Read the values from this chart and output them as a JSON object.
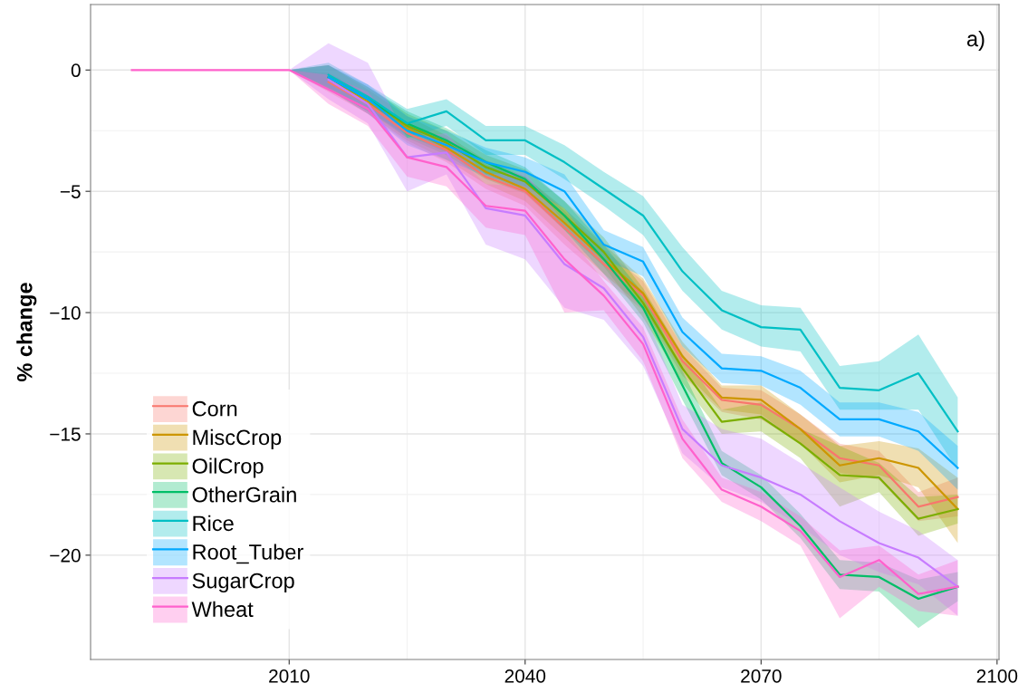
{
  "chart_data": {
    "type": "line",
    "ylabel": "% change",
    "annotations": [
      "a)"
    ],
    "x": [
      1990,
      2010,
      2015,
      2020,
      2025,
      2030,
      2035,
      2040,
      2045,
      2050,
      2055,
      2060,
      2065,
      2070,
      2075,
      2080,
      2085,
      2090,
      2095
    ],
    "xlim": [
      1984.75,
      2100.25
    ],
    "xticks": [
      2010,
      2040,
      2070,
      2100
    ],
    "ylim": [
      -24.3,
      2.7
    ],
    "yticks": [
      0,
      {
        "value": -5,
        "label": "−5"
      },
      {
        "value": -10,
        "label": "−10"
      },
      {
        "value": -15,
        "label": "−15"
      },
      {
        "value": -20,
        "label": "−20"
      }
    ],
    "grid": true,
    "legend": "bottom left",
    "line_style": "solid",
    "marker": "none",
    "series": [
      {
        "name": "Corn",
        "color": "#f8766d",
        "values": [
          null,
          null,
          -0.5,
          -1.4,
          -2.6,
          -3.3,
          -4.4,
          -5.0,
          -6.5,
          -8.0,
          -9.3,
          -12.0,
          -13.6,
          -13.8,
          -14.8,
          -16.0,
          -16.3,
          -18.0,
          -17.6
        ],
        "lower": [
          0,
          0,
          -0.9,
          -1.8,
          -3.0,
          -3.8,
          -4.9,
          -5.6,
          -7.2,
          -8.6,
          -9.9,
          -12.6,
          -14.1,
          -14.4,
          -15.4,
          -16.6,
          -16.9,
          -18.6,
          -18.4
        ],
        "upper": [
          0,
          0,
          -0.1,
          -1.0,
          -2.2,
          -2.8,
          -3.9,
          -4.4,
          -5.8,
          -7.4,
          -8.7,
          -11.4,
          -13.1,
          -13.2,
          -14.2,
          -15.4,
          -15.7,
          -17.4,
          -16.8
        ]
      },
      {
        "name": "MiscCrop",
        "color": "#cd9600",
        "values": [
          null,
          null,
          -0.3,
          -1.3,
          -2.4,
          -3.2,
          -4.2,
          -4.9,
          -6.3,
          -7.8,
          -9.2,
          -11.8,
          -13.5,
          -13.6,
          -14.8,
          -16.3,
          -16.0,
          -16.4,
          -18.1
        ],
        "lower": [
          0,
          0,
          -0.8,
          -1.8,
          -2.9,
          -3.7,
          -4.7,
          -5.4,
          -6.9,
          -8.4,
          -9.8,
          -12.4,
          -14.0,
          -14.2,
          -15.4,
          -17.0,
          -16.7,
          -17.2,
          -19.5
        ],
        "upper": [
          0,
          0,
          0.2,
          -0.8,
          -1.9,
          -2.7,
          -3.7,
          -4.4,
          -5.7,
          -7.2,
          -8.6,
          -11.2,
          -13.0,
          -13.0,
          -14.2,
          -15.5,
          -15.3,
          -15.6,
          -16.8
        ]
      },
      {
        "name": "OilCrop",
        "color": "#7cae00",
        "values": [
          null,
          null,
          -0.3,
          -1.2,
          -2.3,
          -3.0,
          -4.0,
          -4.6,
          -6.0,
          -7.5,
          -9.6,
          -12.3,
          -14.5,
          -14.3,
          -15.4,
          -16.7,
          -16.8,
          -18.5,
          -18.1
        ],
        "lower": [
          0,
          0,
          -0.8,
          -1.7,
          -2.8,
          -3.5,
          -4.5,
          -5.1,
          -6.6,
          -8.1,
          -10.2,
          -12.9,
          -15.0,
          -14.9,
          -16.0,
          -18.0,
          -17.4,
          -19.2,
          -18.7
        ],
        "upper": [
          0,
          0,
          0.2,
          -0.7,
          -1.8,
          -2.5,
          -3.5,
          -4.1,
          -5.4,
          -6.9,
          -9.0,
          -11.7,
          -14.0,
          -13.7,
          -14.8,
          -15.5,
          -16.2,
          -17.6,
          -17.5
        ]
      },
      {
        "name": "OtherGrain",
        "color": "#00be67",
        "values": [
          null,
          null,
          -0.3,
          -1.2,
          -2.2,
          -2.9,
          -3.8,
          -4.5,
          -6.0,
          -7.8,
          -9.8,
          -13.0,
          -16.2,
          -17.2,
          -18.8,
          -20.8,
          -20.9,
          -21.8,
          -21.3
        ],
        "lower": [
          0,
          0,
          -0.8,
          -1.7,
          -2.7,
          -3.4,
          -4.3,
          -5.0,
          -6.6,
          -8.4,
          -10.4,
          -13.6,
          -16.7,
          -17.7,
          -19.3,
          -21.4,
          -21.5,
          -23.0,
          -21.9
        ],
        "upper": [
          0,
          0,
          0.2,
          -0.7,
          -1.7,
          -2.4,
          -3.3,
          -4.0,
          -5.4,
          -7.2,
          -9.2,
          -12.4,
          -15.7,
          -16.7,
          -18.3,
          -20.2,
          -20.3,
          -21.0,
          -20.7
        ]
      },
      {
        "name": "Rice",
        "color": "#00bfc4",
        "values": [
          null,
          null,
          -0.2,
          -1.1,
          -2.2,
          -1.7,
          -2.9,
          -2.9,
          -3.8,
          -4.9,
          -6.0,
          -8.3,
          -9.9,
          -10.6,
          -10.7,
          -13.1,
          -13.2,
          -12.5,
          -14.9
        ],
        "lower": [
          0,
          0,
          -0.7,
          -1.6,
          -2.8,
          -2.3,
          -3.5,
          -3.5,
          -4.5,
          -5.6,
          -6.8,
          -9.1,
          -10.7,
          -11.4,
          -11.6,
          -14.0,
          -14.0,
          -14.0,
          -16.5
        ],
        "upper": [
          0,
          0,
          0.3,
          -0.6,
          -1.6,
          -1.2,
          -2.3,
          -2.3,
          -3.1,
          -4.2,
          -5.2,
          -7.3,
          -9.1,
          -9.7,
          -9.8,
          -12.2,
          -12.0,
          -10.9,
          -13.5
        ]
      },
      {
        "name": "Root_Tuber",
        "color": "#00a9ff",
        "values": [
          null,
          null,
          -0.3,
          -1.2,
          -2.5,
          -3.1,
          -3.8,
          -4.2,
          -5.0,
          -7.2,
          -7.9,
          -10.8,
          -12.3,
          -12.4,
          -13.1,
          -14.4,
          -14.4,
          -14.9,
          -16.4
        ],
        "lower": [
          0,
          0,
          -0.8,
          -1.8,
          -3.1,
          -3.7,
          -4.4,
          -4.8,
          -5.7,
          -7.8,
          -8.5,
          -11.4,
          -12.9,
          -13.0,
          -13.8,
          -15.1,
          -15.1,
          -15.7,
          -17.3
        ],
        "upper": [
          0,
          0,
          0.2,
          -0.6,
          -1.9,
          -2.5,
          -3.2,
          -3.6,
          -4.3,
          -6.6,
          -7.3,
          -10.2,
          -11.7,
          -11.8,
          -12.4,
          -13.7,
          -13.7,
          -14.1,
          -15.5
        ]
      },
      {
        "name": "SugarCrop",
        "color": "#c77cff",
        "values": [
          null,
          null,
          -0.4,
          -1.4,
          -3.6,
          -3.4,
          -5.7,
          -6.0,
          -8.0,
          -9.0,
          -11.0,
          -14.8,
          -16.3,
          -16.8,
          -17.5,
          -18.6,
          -19.5,
          -20.1,
          -21.3
        ],
        "lower": [
          0,
          0,
          -1.2,
          -2.2,
          -5.0,
          -4.3,
          -7.2,
          -7.8,
          -9.8,
          -10.3,
          -12.2,
          -15.8,
          -17.2,
          -17.8,
          -18.8,
          -20.0,
          -20.7,
          -21.2,
          -22.5
        ],
        "upper": [
          0,
          0,
          1.1,
          0.3,
          -2.8,
          -2.6,
          -4.3,
          -4.2,
          -6.3,
          -7.8,
          -9.9,
          -13.8,
          -14.8,
          -15.2,
          -16.2,
          -17.2,
          -18.2,
          -19.0,
          -20.2
        ]
      },
      {
        "name": "Wheat",
        "color": "#ff61cc",
        "values": [
          0,
          0,
          -0.8,
          -1.6,
          -3.6,
          -4.0,
          -5.6,
          -5.8,
          -7.8,
          -9.3,
          -11.3,
          -15.2,
          -17.3,
          -18.0,
          -19.0,
          -20.9,
          -20.2,
          -21.6,
          -21.3
        ],
        "lower": [
          0,
          0,
          -1.4,
          -2.3,
          -4.4,
          -4.8,
          -6.5,
          -6.8,
          -10.0,
          -9.9,
          -12.0,
          -16.0,
          -17.8,
          -18.6,
          -19.6,
          -22.6,
          -21.3,
          -22.3,
          -22.5
        ],
        "upper": [
          0,
          0,
          -0.2,
          -0.9,
          -2.8,
          -3.2,
          -4.7,
          -4.8,
          -6.6,
          -8.7,
          -10.6,
          -14.4,
          -16.8,
          -17.4,
          -18.4,
          -19.8,
          -19.6,
          -20.8,
          -20.2
        ]
      }
    ]
  }
}
